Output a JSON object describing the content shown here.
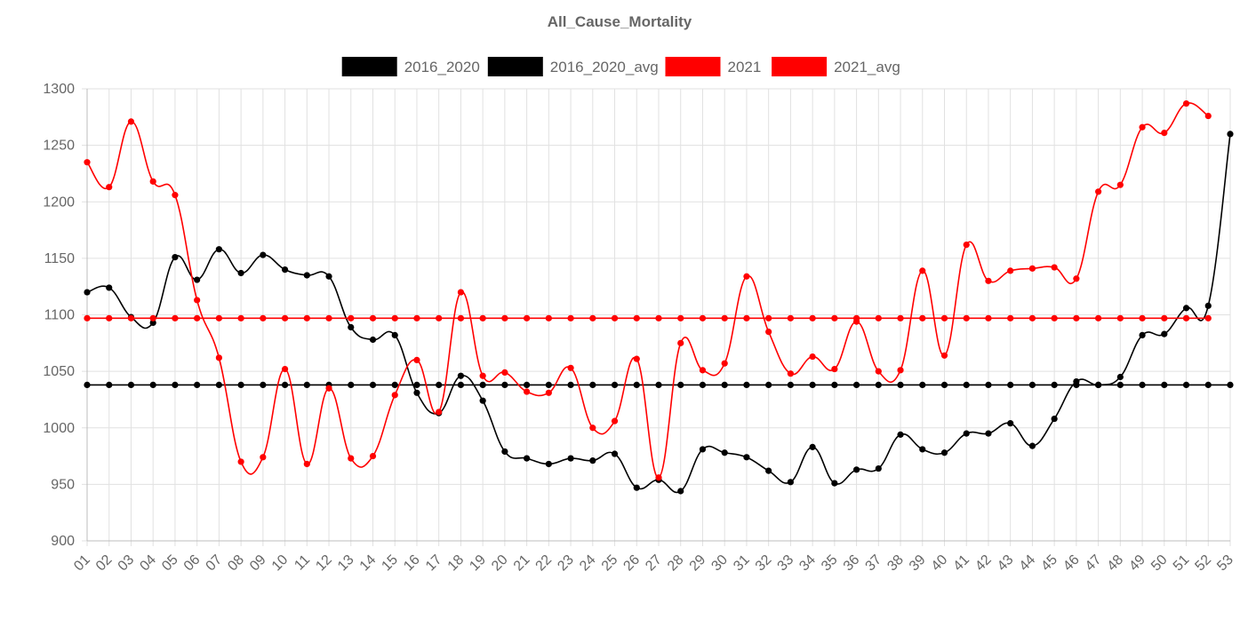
{
  "chart_data": {
    "type": "line",
    "title": "All_Cause_Mortality",
    "xlabel": "",
    "ylabel": "",
    "ylim": [
      900,
      1300
    ],
    "yticks": [
      "900",
      "950",
      "1000",
      "1050",
      "1100",
      "1150",
      "1200",
      "1250",
      "1300"
    ],
    "grid": true,
    "legend_position": "top",
    "categories": [
      "01",
      "02",
      "03",
      "04",
      "05",
      "06",
      "07",
      "08",
      "09",
      "10",
      "11",
      "12",
      "13",
      "14",
      "15",
      "16",
      "17",
      "18",
      "19",
      "20",
      "21",
      "22",
      "23",
      "24",
      "25",
      "26",
      "27",
      "28",
      "29",
      "30",
      "31",
      "32",
      "33",
      "34",
      "35",
      "36",
      "37",
      "38",
      "39",
      "40",
      "41",
      "42",
      "43",
      "44",
      "45",
      "46",
      "47",
      "48",
      "49",
      "50",
      "51",
      "52",
      "53"
    ],
    "series": [
      {
        "name": "2016_2020",
        "color": "#000000",
        "values": [
          1120,
          1124,
          1098,
          1093,
          1151,
          1131,
          1158,
          1137,
          1153,
          1140,
          1135,
          1134,
          1089,
          1078,
          1082,
          1031,
          1013,
          1046,
          1024,
          979,
          973,
          968,
          973,
          971,
          977,
          947,
          954,
          944,
          981,
          978,
          974,
          962,
          952,
          983,
          951,
          963,
          964,
          994,
          981,
          978,
          995,
          995,
          1004,
          984,
          1008,
          1041,
          1038,
          1045,
          1082,
          1083,
          1106,
          1108,
          1260
        ]
      },
      {
        "name": "2016_2020_avg",
        "color": "#000000",
        "values": [
          1038,
          1038,
          1038,
          1038,
          1038,
          1038,
          1038,
          1038,
          1038,
          1038,
          1038,
          1038,
          1038,
          1038,
          1038,
          1038,
          1038,
          1038,
          1038,
          1038,
          1038,
          1038,
          1038,
          1038,
          1038,
          1038,
          1038,
          1038,
          1038,
          1038,
          1038,
          1038,
          1038,
          1038,
          1038,
          1038,
          1038,
          1038,
          1038,
          1038,
          1038,
          1038,
          1038,
          1038,
          1038,
          1038,
          1038,
          1038,
          1038,
          1038,
          1038,
          1038,
          1038
        ]
      },
      {
        "name": "2021",
        "color": "#ff0000",
        "values": [
          1235,
          1213,
          1271,
          1218,
          1206,
          1113,
          1062,
          970,
          974,
          1052,
          968,
          1035,
          973,
          975,
          1029,
          1060,
          1014,
          1120,
          1046,
          1049,
          1032,
          1031,
          1053,
          1000,
          1006,
          1061,
          956,
          1075,
          1051,
          1057,
          1134,
          1085,
          1048,
          1063,
          1052,
          1094,
          1050,
          1051,
          1139,
          1064,
          1162,
          1130,
          1139,
          1141,
          1142,
          1132,
          1209,
          1215,
          1266,
          1261,
          1287,
          1276,
          null
        ]
      },
      {
        "name": "2021_avg",
        "color": "#ff0000",
        "values": [
          1097,
          1097,
          1097,
          1097,
          1097,
          1097,
          1097,
          1097,
          1097,
          1097,
          1097,
          1097,
          1097,
          1097,
          1097,
          1097,
          1097,
          1097,
          1097,
          1097,
          1097,
          1097,
          1097,
          1097,
          1097,
          1097,
          1097,
          1097,
          1097,
          1097,
          1097,
          1097,
          1097,
          1097,
          1097,
          1097,
          1097,
          1097,
          1097,
          1097,
          1097,
          1097,
          1097,
          1097,
          1097,
          1097,
          1097,
          1097,
          1097,
          1097,
          1097,
          1097,
          null
        ]
      }
    ]
  }
}
